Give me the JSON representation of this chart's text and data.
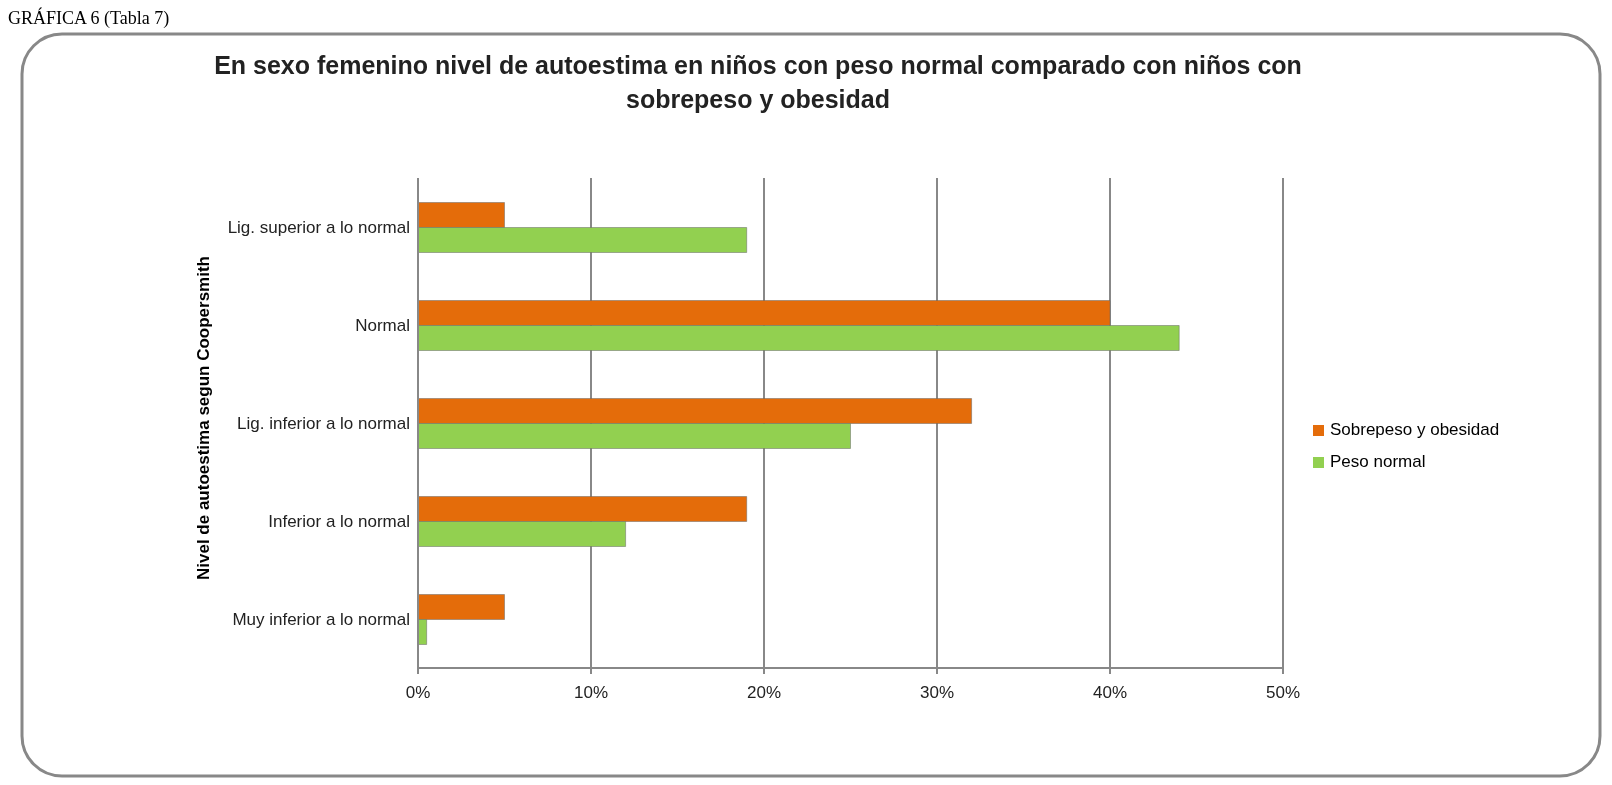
{
  "chart_data": {
    "type": "bar",
    "orientation": "horizontal",
    "title": "En sexo femenino nivel de autoestima en niños con peso normal comparado con niños con sobrepeso y obesidad",
    "ylabel": "Nivel de autoestima segun Coopersmith",
    "annotations": [
      "GRÁFICA 6 (Tabla 7)"
    ],
    "categories": [
      "Lig.  superior a lo normal",
      "Normal",
      "Lig. inferior a lo normal",
      "Inferior a lo normal",
      "Muy inferior a lo normal"
    ],
    "series": [
      {
        "name": "Sobrepeso y obesidad",
        "color": "#e46c0a",
        "values": [
          5,
          40,
          32,
          19,
          5
        ]
      },
      {
        "name": "Peso normal",
        "color": "#92d050",
        "values": [
          19,
          44,
          25,
          12,
          0.5
        ]
      }
    ],
    "xlim": [
      0,
      50
    ],
    "xticks": [
      {
        "value": 0,
        "label": "0%"
      },
      {
        "value": 10,
        "label": "10%"
      },
      {
        "value": 20,
        "label": "20%"
      },
      {
        "value": 30,
        "label": "30%"
      },
      {
        "value": 40,
        "label": "40%"
      },
      {
        "value": 50,
        "label": "50%"
      }
    ],
    "grid": "x",
    "legend": "right"
  }
}
